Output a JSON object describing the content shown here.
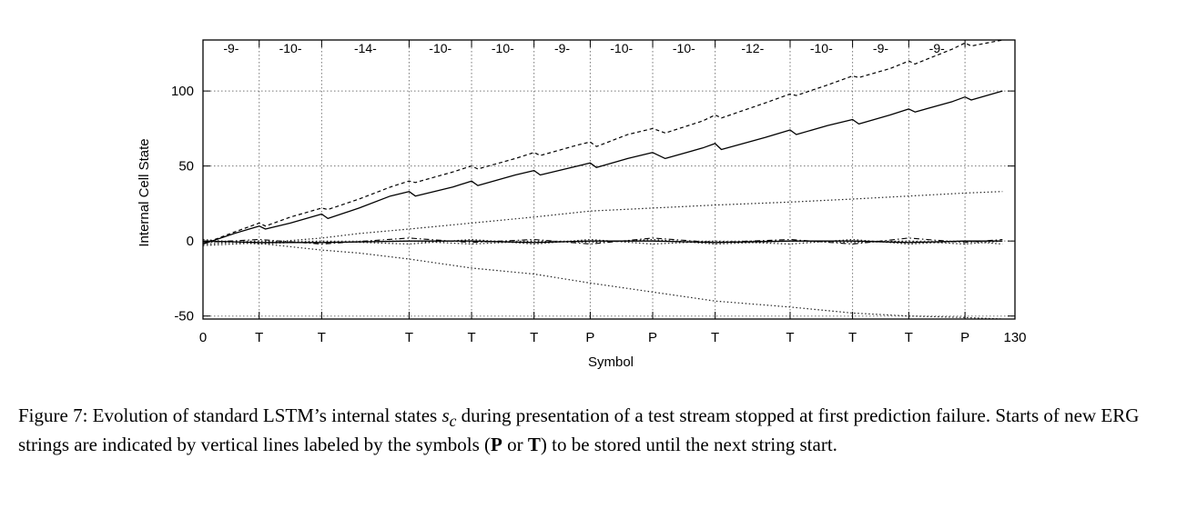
{
  "chart_data": {
    "type": "line",
    "xlabel": "Symbol",
    "ylabel": "Internal Cell State",
    "xlim": [
      0,
      130
    ],
    "ylim": [
      -52,
      134
    ],
    "y_ticks": [
      -50,
      0,
      50,
      100
    ],
    "x_tick_labels": [
      {
        "x": 0,
        "label": "0"
      },
      {
        "x": 9,
        "label": "T"
      },
      {
        "x": 19,
        "label": "T"
      },
      {
        "x": 33,
        "label": "T"
      },
      {
        "x": 43,
        "label": "T"
      },
      {
        "x": 53,
        "label": "T"
      },
      {
        "x": 62,
        "label": "P"
      },
      {
        "x": 72,
        "label": "P"
      },
      {
        "x": 82,
        "label": "T"
      },
      {
        "x": 94,
        "label": "T"
      },
      {
        "x": 104,
        "label": "T"
      },
      {
        "x": 113,
        "label": "T"
      },
      {
        "x": 122,
        "label": "P"
      },
      {
        "x": 130,
        "label": "130"
      }
    ],
    "string_starts": [
      9,
      19,
      33,
      43,
      53,
      62,
      72,
      82,
      94,
      104,
      113,
      122
    ],
    "segment_labels": [
      {
        "x": 4.5,
        "label": "-9-"
      },
      {
        "x": 14,
        "label": "-10-"
      },
      {
        "x": 26,
        "label": "-14-"
      },
      {
        "x": 38,
        "label": "-10-"
      },
      {
        "x": 48,
        "label": "-10-"
      },
      {
        "x": 57.5,
        "label": "-9-"
      },
      {
        "x": 67,
        "label": "-10-"
      },
      {
        "x": 77,
        "label": "-10-"
      },
      {
        "x": 88,
        "label": "-12-"
      },
      {
        "x": 99,
        "label": "-10-"
      },
      {
        "x": 108.5,
        "label": "-9-"
      },
      {
        "x": 117.5,
        "label": "-9-"
      }
    ],
    "grid": true,
    "series": [
      {
        "style": "dashed",
        "points": [
          [
            0,
            -2
          ],
          [
            5,
            6
          ],
          [
            9,
            12
          ],
          [
            10,
            10
          ],
          [
            14,
            16
          ],
          [
            19,
            22
          ],
          [
            20,
            21
          ],
          [
            25,
            28
          ],
          [
            30,
            36
          ],
          [
            33,
            40
          ],
          [
            34,
            39
          ],
          [
            40,
            46
          ],
          [
            43,
            50
          ],
          [
            44,
            48
          ],
          [
            50,
            55
          ],
          [
            53,
            59
          ],
          [
            54,
            57
          ],
          [
            60,
            64
          ],
          [
            62,
            66
          ],
          [
            63,
            63
          ],
          [
            68,
            71
          ],
          [
            72,
            75
          ],
          [
            74,
            72
          ],
          [
            80,
            80
          ],
          [
            82,
            84
          ],
          [
            83,
            82
          ],
          [
            90,
            92
          ],
          [
            94,
            98
          ],
          [
            95,
            97
          ],
          [
            100,
            104
          ],
          [
            104,
            110
          ],
          [
            105,
            109
          ],
          [
            110,
            115
          ],
          [
            113,
            120
          ],
          [
            114,
            118
          ],
          [
            120,
            128
          ],
          [
            122,
            132
          ],
          [
            123,
            130
          ],
          [
            128,
            134
          ]
        ]
      },
      {
        "style": "solid",
        "points": [
          [
            0,
            -2
          ],
          [
            5,
            5
          ],
          [
            9,
            10
          ],
          [
            10,
            8
          ],
          [
            14,
            12
          ],
          [
            19,
            18
          ],
          [
            20,
            15
          ],
          [
            25,
            22
          ],
          [
            30,
            30
          ],
          [
            33,
            33
          ],
          [
            34,
            30
          ],
          [
            40,
            36
          ],
          [
            43,
            40
          ],
          [
            44,
            37
          ],
          [
            50,
            44
          ],
          [
            53,
            47
          ],
          [
            54,
            44
          ],
          [
            60,
            50
          ],
          [
            62,
            52
          ],
          [
            63,
            49
          ],
          [
            68,
            55
          ],
          [
            72,
            59
          ],
          [
            74,
            55
          ],
          [
            80,
            62
          ],
          [
            82,
            65
          ],
          [
            83,
            61
          ],
          [
            90,
            69
          ],
          [
            94,
            74
          ],
          [
            95,
            71
          ],
          [
            100,
            77
          ],
          [
            104,
            81
          ],
          [
            105,
            78
          ],
          [
            110,
            84
          ],
          [
            113,
            88
          ],
          [
            114,
            86
          ],
          [
            120,
            93
          ],
          [
            122,
            96
          ],
          [
            123,
            94
          ],
          [
            128,
            100
          ]
        ]
      },
      {
        "style": "dotted",
        "points": [
          [
            0,
            -3
          ],
          [
            10,
            -1
          ],
          [
            19,
            2
          ],
          [
            25,
            5
          ],
          [
            33,
            8
          ],
          [
            43,
            12
          ],
          [
            53,
            16
          ],
          [
            62,
            20
          ],
          [
            72,
            22
          ],
          [
            82,
            24
          ],
          [
            94,
            26
          ],
          [
            104,
            28
          ],
          [
            113,
            30
          ],
          [
            122,
            32
          ],
          [
            128,
            33
          ]
        ]
      },
      {
        "style": "dotted",
        "points": [
          [
            0,
            0
          ],
          [
            10,
            -2
          ],
          [
            19,
            -6
          ],
          [
            25,
            -8
          ],
          [
            33,
            -12
          ],
          [
            43,
            -18
          ],
          [
            53,
            -22
          ],
          [
            62,
            -28
          ],
          [
            72,
            -34
          ],
          [
            82,
            -40
          ],
          [
            94,
            -44
          ],
          [
            104,
            -48
          ],
          [
            113,
            -50
          ],
          [
            122,
            -51
          ],
          [
            128,
            -52
          ]
        ]
      },
      {
        "style": "dashdot",
        "points": [
          [
            0,
            -1
          ],
          [
            9,
            1
          ],
          [
            19,
            -2
          ],
          [
            33,
            2
          ],
          [
            43,
            -1
          ],
          [
            53,
            1
          ],
          [
            62,
            -2
          ],
          [
            72,
            2
          ],
          [
            82,
            -1
          ],
          [
            94,
            1
          ],
          [
            104,
            -2
          ],
          [
            113,
            2
          ],
          [
            122,
            -1
          ],
          [
            128,
            1
          ]
        ]
      },
      {
        "style": "dotted",
        "points": [
          [
            0,
            1
          ],
          [
            9,
            -2
          ],
          [
            19,
            0
          ],
          [
            33,
            -2
          ],
          [
            43,
            1
          ],
          [
            53,
            -2
          ],
          [
            62,
            1
          ],
          [
            72,
            -2
          ],
          [
            82,
            0
          ],
          [
            94,
            -2
          ],
          [
            104,
            1
          ],
          [
            113,
            -2
          ],
          [
            122,
            0
          ],
          [
            128,
            -2
          ]
        ]
      },
      {
        "style": "dotted",
        "points": [
          [
            0,
            -2
          ],
          [
            9,
            0
          ],
          [
            19,
            -1
          ],
          [
            33,
            0
          ],
          [
            43,
            -2
          ],
          [
            53,
            0
          ],
          [
            62,
            -1
          ],
          [
            72,
            1
          ],
          [
            82,
            -2
          ],
          [
            94,
            0
          ],
          [
            104,
            -1
          ],
          [
            113,
            0
          ],
          [
            122,
            -2
          ],
          [
            128,
            0
          ]
        ]
      },
      {
        "style": "solid",
        "points": [
          [
            0,
            0
          ],
          [
            9,
            -1
          ],
          [
            19,
            -1
          ],
          [
            33,
            0
          ],
          [
            43,
            0
          ],
          [
            53,
            -1
          ],
          [
            62,
            0
          ],
          [
            72,
            0
          ],
          [
            82,
            -1
          ],
          [
            94,
            0
          ],
          [
            104,
            0
          ],
          [
            113,
            -1
          ],
          [
            122,
            0
          ],
          [
            128,
            0
          ]
        ]
      }
    ]
  },
  "caption": {
    "figure_label": "Figure 7:",
    "part1": "Evolution of standard LSTM’s internal states",
    "symbol": "s",
    "subscript": "c",
    "part2": "during presentation of a test stream stopped at first prediction failure. Starts of new ERG strings are indicated by vertical lines labeled by the symbols (",
    "sym_p": "P",
    "or_word": "or",
    "sym_t": "T",
    "part3": ") to be stored until the next string start."
  }
}
